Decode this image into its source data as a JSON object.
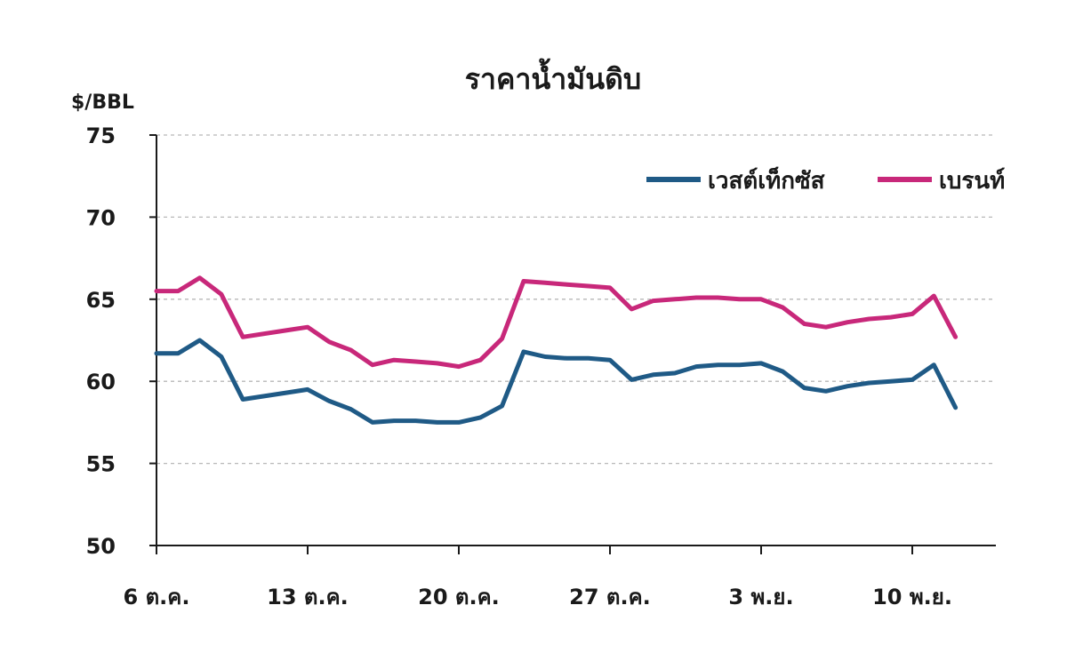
{
  "chart_data": {
    "type": "line",
    "title": "ราคาน้ำมันดิบ",
    "ylabel": "$/BBL",
    "xlabel": "",
    "ylim": [
      50,
      75
    ],
    "yticks": [
      50,
      55,
      60,
      65,
      70,
      75
    ],
    "grid": "horizontal dashed",
    "legend_placement": "top-right",
    "x": [
      0,
      1,
      2,
      3,
      4,
      5,
      6,
      7,
      8,
      9,
      10,
      11,
      12,
      13,
      14,
      15,
      16,
      17,
      18,
      19,
      20,
      21,
      22,
      23,
      24,
      25,
      26,
      27,
      28,
      29,
      30,
      31,
      32,
      33,
      34,
      35,
      36
    ],
    "xticks": [
      {
        "pos": 0,
        "label": "6 ต.ค."
      },
      {
        "pos": 7,
        "label": "13 ต.ค."
      },
      {
        "pos": 14,
        "label": "20 ต.ค."
      },
      {
        "pos": 21,
        "label": "27 ต.ค."
      },
      {
        "pos": 28,
        "label": "3 พ.ย."
      },
      {
        "pos": 35,
        "label": "10 พ.ย."
      }
    ],
    "xlim": [
      0,
      39
    ],
    "series": [
      {
        "name": "เวสต์เท็กซัส",
        "color": "#1f5a86",
        "points": [
          [
            0,
            61.7
          ],
          [
            1,
            61.7
          ],
          [
            2,
            62.5
          ],
          [
            3,
            61.5
          ],
          [
            4,
            58.9
          ],
          [
            6,
            59.3
          ],
          [
            7,
            59.5
          ],
          [
            8,
            58.8
          ],
          [
            9,
            58.3
          ],
          [
            10,
            57.5
          ],
          [
            11,
            57.6
          ],
          [
            12,
            57.6
          ],
          [
            13,
            57.5
          ],
          [
            14,
            57.5
          ],
          [
            15,
            57.8
          ],
          [
            16,
            58.5
          ],
          [
            17,
            61.8
          ],
          [
            18,
            61.5
          ],
          [
            19,
            61.4
          ],
          [
            20,
            61.4
          ],
          [
            21,
            61.3
          ],
          [
            22,
            60.1
          ],
          [
            23,
            60.4
          ],
          [
            24,
            60.5
          ],
          [
            25,
            60.9
          ],
          [
            26,
            61.0
          ],
          [
            27,
            61.0
          ],
          [
            28,
            61.1
          ],
          [
            29,
            60.6
          ],
          [
            30,
            59.6
          ],
          [
            31,
            59.4
          ],
          [
            32,
            59.7
          ],
          [
            33,
            59.9
          ],
          [
            34,
            60.0
          ],
          [
            35,
            60.1
          ],
          [
            36,
            61.0
          ],
          [
            37,
            58.4
          ]
        ]
      },
      {
        "name": "เบรนท์",
        "color": "#c8287a",
        "points": [
          [
            0,
            65.5
          ],
          [
            1,
            65.5
          ],
          [
            2,
            66.3
          ],
          [
            3,
            65.3
          ],
          [
            4,
            62.7
          ],
          [
            6,
            63.1
          ],
          [
            7,
            63.3
          ],
          [
            8,
            62.4
          ],
          [
            9,
            61.9
          ],
          [
            10,
            61.0
          ],
          [
            11,
            61.3
          ],
          [
            12,
            61.2
          ],
          [
            13,
            61.1
          ],
          [
            14,
            60.9
          ],
          [
            15,
            61.3
          ],
          [
            16,
            62.6
          ],
          [
            17,
            66.1
          ],
          [
            18,
            66.0
          ],
          [
            19,
            65.9
          ],
          [
            20,
            65.8
          ],
          [
            21,
            65.7
          ],
          [
            22,
            64.4
          ],
          [
            23,
            64.9
          ],
          [
            24,
            65.0
          ],
          [
            25,
            65.1
          ],
          [
            26,
            65.1
          ],
          [
            27,
            65.0
          ],
          [
            28,
            65.0
          ],
          [
            29,
            64.5
          ],
          [
            30,
            63.5
          ],
          [
            31,
            63.3
          ],
          [
            32,
            63.6
          ],
          [
            33,
            63.8
          ],
          [
            34,
            63.9
          ],
          [
            35,
            64.1
          ],
          [
            36,
            65.2
          ],
          [
            37,
            62.7
          ]
        ]
      }
    ]
  }
}
